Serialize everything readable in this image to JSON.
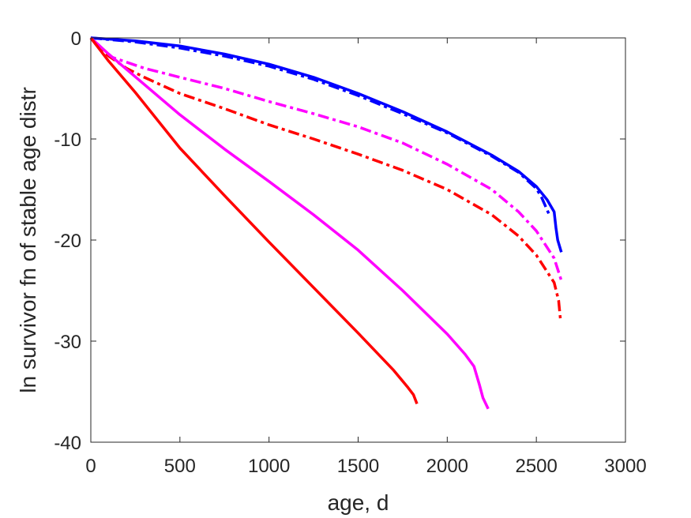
{
  "chart_data": {
    "type": "line",
    "title": "",
    "xlabel": "age, d",
    "ylabel": "ln survivor fn of stable age distr",
    "xlim": [
      0,
      3000
    ],
    "ylim": [
      -40,
      0
    ],
    "xticks": [
      "0",
      "500",
      "1000",
      "1500",
      "2000",
      "2500",
      "3000"
    ],
    "yticks": [
      "0",
      "-10",
      "-20",
      "-30",
      "-40"
    ],
    "grid": false,
    "legend": "none",
    "series": [
      {
        "color": "#0000ff",
        "dash": "solid",
        "x": [
          0,
          250,
          500,
          750,
          1000,
          1250,
          1500,
          1750,
          2000,
          2250,
          2400,
          2500,
          2560,
          2600,
          2610,
          2620,
          2640
        ],
        "y": [
          0,
          -0.3,
          -0.8,
          -1.6,
          -2.6,
          -3.9,
          -5.5,
          -7.3,
          -9.3,
          -11.6,
          -13.2,
          -14.7,
          -16.0,
          -17.2,
          -18.8,
          -20.0,
          -21.2
        ]
      },
      {
        "color": "#0000ff",
        "dash": "dashdot",
        "x": [
          0,
          250,
          500,
          750,
          1000,
          1250,
          1500,
          1750,
          2000,
          2250,
          2400,
          2500,
          2530,
          2560,
          2575
        ],
        "y": [
          0,
          -0.4,
          -1.0,
          -1.8,
          -2.8,
          -4.1,
          -5.7,
          -7.5,
          -9.4,
          -11.7,
          -13.3,
          -14.9,
          -15.8,
          -17.0,
          -17.6
        ]
      },
      {
        "color": "#ff00ff",
        "dash": "dashdot",
        "x": [
          0,
          50,
          100,
          200,
          300,
          500,
          750,
          1000,
          1250,
          1500,
          1750,
          2000,
          2250,
          2400,
          2500,
          2600,
          2640
        ],
        "y": [
          0,
          -1.0,
          -1.8,
          -2.4,
          -3.0,
          -3.9,
          -5.0,
          -6.3,
          -7.5,
          -8.8,
          -10.4,
          -12.5,
          -15.0,
          -17.2,
          -19.1,
          -21.8,
          -24.0
        ]
      },
      {
        "color": "#ff0000",
        "dash": "dashdot",
        "x": [
          0,
          50,
          100,
          200,
          300,
          500,
          750,
          1000,
          1250,
          1500,
          1750,
          2000,
          2250,
          2400,
          2500,
          2600,
          2625,
          2635
        ],
        "y": [
          0,
          -1.0,
          -1.8,
          -3.0,
          -3.9,
          -5.5,
          -7.0,
          -8.6,
          -10.0,
          -11.5,
          -13.1,
          -15.0,
          -17.5,
          -19.6,
          -21.5,
          -24.2,
          -26.0,
          -27.8
        ]
      },
      {
        "color": "#ff00ff",
        "dash": "solid",
        "x": [
          0,
          100,
          200,
          500,
          750,
          1000,
          1250,
          1500,
          1750,
          2000,
          2100,
          2150,
          2180,
          2200,
          2230
        ],
        "y": [
          0,
          -1.6,
          -3.1,
          -7.6,
          -11.0,
          -14.2,
          -17.5,
          -21.0,
          -25.0,
          -29.3,
          -31.3,
          -32.5,
          -34.3,
          -35.6,
          -36.7
        ]
      },
      {
        "color": "#ff0000",
        "dash": "solid",
        "x": [
          0,
          100,
          250,
          500,
          750,
          1000,
          1250,
          1500,
          1700,
          1780,
          1810,
          1830
        ],
        "y": [
          0,
          -2.3,
          -5.4,
          -10.9,
          -15.6,
          -20.2,
          -24.7,
          -29.2,
          -32.9,
          -34.6,
          -35.3,
          -36.2
        ]
      }
    ]
  }
}
